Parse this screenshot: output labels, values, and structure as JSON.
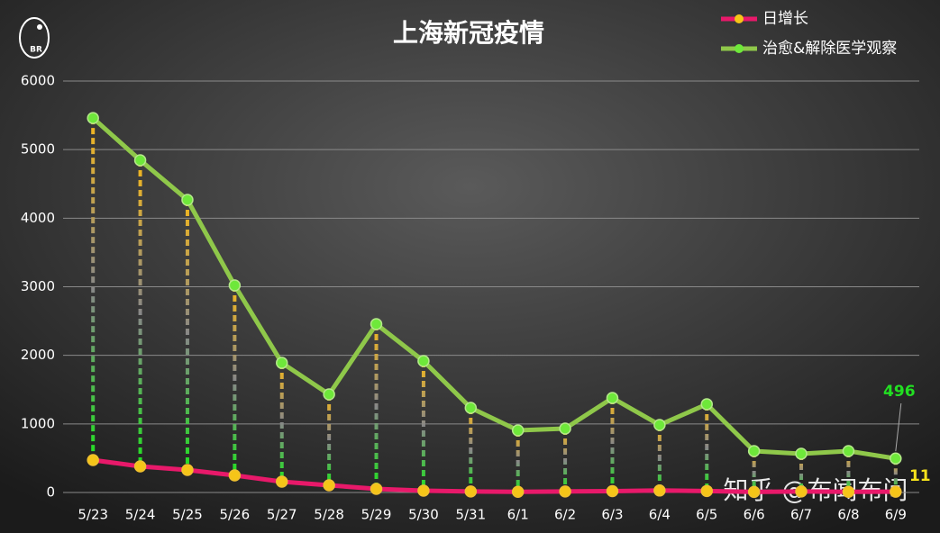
{
  "chart_data": {
    "type": "line",
    "title": "上海新冠疫情",
    "categories": [
      "5/23",
      "5/24",
      "5/25",
      "5/26",
      "5/27",
      "5/28",
      "5/29",
      "5/30",
      "5/31",
      "6/1",
      "6/2",
      "6/3",
      "6/4",
      "6/5",
      "6/6",
      "6/7",
      "6/8",
      "6/9"
    ],
    "series": [
      {
        "name": "日增长",
        "color": "#e8196a",
        "marker_color": "#f5c518",
        "values": [
          473,
          381,
          328,
          249,
          158,
          105,
          53,
          26,
          15,
          10,
          15,
          20,
          29,
          22,
          8,
          15,
          10,
          11
        ]
      },
      {
        "name": "治愈&解除医学观察",
        "color": "#8fc84a",
        "marker_color": "#6ee83a",
        "values": [
          5460,
          4845,
          4267,
          3020,
          1890,
          1431,
          2455,
          1917,
          1234,
          906,
          932,
          1378,
          985,
          1287,
          604,
          565,
          604,
          496
        ]
      }
    ],
    "ylim": [
      0,
      6000
    ],
    "yticks": [
      0,
      1000,
      2000,
      3000,
      4000,
      5000,
      6000
    ],
    "grid": true,
    "legend": "top-right",
    "watermark": "知乎 @布闻布问",
    "logo_text": "BR"
  }
}
